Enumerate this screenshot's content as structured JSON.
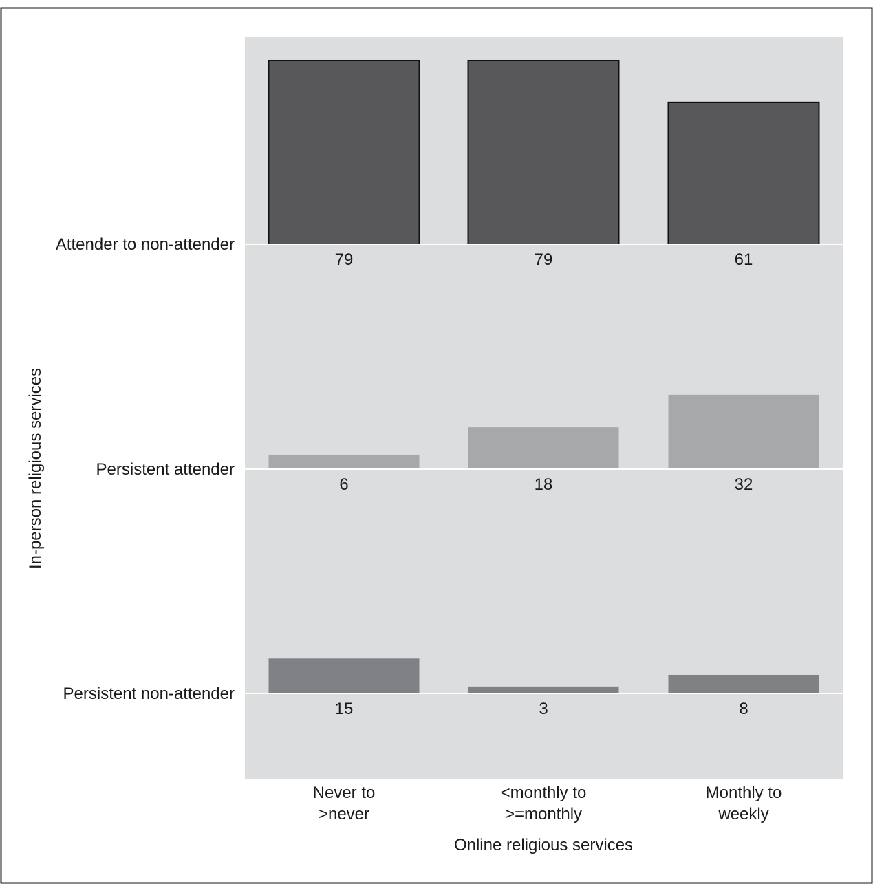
{
  "chart_data": {
    "type": "bar",
    "xlabel": "Online religious services",
    "ylabel": "In-person religious services",
    "categories": [
      [
        "Never to",
        ">never"
      ],
      [
        "<monthly to",
        ">=monthly"
      ],
      [
        "Monthly to",
        "weekly"
      ]
    ],
    "rows": [
      {
        "label": "Attender to non-attender",
        "values": [
          79,
          79,
          61
        ],
        "color": "#58585a",
        "outlined": true
      },
      {
        "label": "Persistent attender",
        "values": [
          6,
          18,
          32
        ],
        "color": "#a7a8aa",
        "outlined": false
      },
      {
        "label": "Persistent non-attender",
        "values": [
          15,
          3,
          8
        ],
        "color": "#808184",
        "outlined": false
      }
    ],
    "value_max": 79,
    "grid": "horizontal baselines per row",
    "colors": {
      "panel_background": "#dcdddf",
      "baseline": "#ffffff",
      "frame": "#1a1a1a"
    }
  }
}
